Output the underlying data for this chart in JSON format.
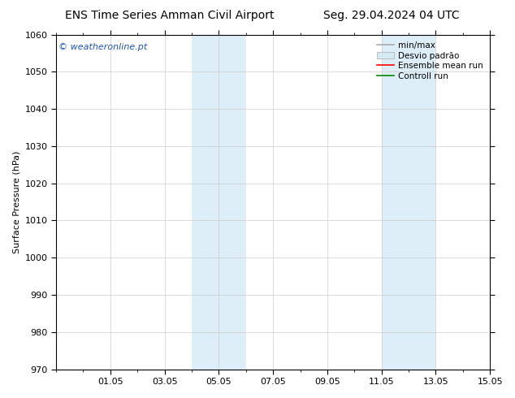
{
  "title_left": "ENS Time Series Amman Civil Airport",
  "title_right": "Seg. 29.04.2024 04 UTC",
  "ylabel": "Surface Pressure (hPa)",
  "watermark": "© weatheronline.pt",
  "ylim": [
    970,
    1060
  ],
  "yticks": [
    970,
    980,
    990,
    1000,
    1010,
    1020,
    1030,
    1040,
    1050,
    1060
  ],
  "xlim": [
    0,
    16
  ],
  "xtick_labels": [
    "01.05",
    "03.05",
    "05.05",
    "07.05",
    "09.05",
    "11.05",
    "13.05",
    "15.05"
  ],
  "xtick_positions": [
    2,
    4,
    6,
    8,
    10,
    12,
    14,
    16
  ],
  "shaded_bands": [
    {
      "x_start": 5,
      "x_end": 7,
      "color": "#ddeef8"
    },
    {
      "x_start": 12,
      "x_end": 14,
      "color": "#ddeef8"
    }
  ],
  "legend_minmax_color": "#aaaaaa",
  "legend_desvio_color": "#d6eaf5",
  "legend_mean_color": "#ff0000",
  "legend_control_color": "#008800",
  "background_color": "#ffffff",
  "plot_bg_color": "#ffffff",
  "grid_color": "#cccccc",
  "title_fontsize": 10,
  "axis_label_fontsize": 8,
  "tick_fontsize": 8,
  "legend_fontsize": 7.5,
  "watermark_color": "#2255aa",
  "watermark_fontsize": 8
}
